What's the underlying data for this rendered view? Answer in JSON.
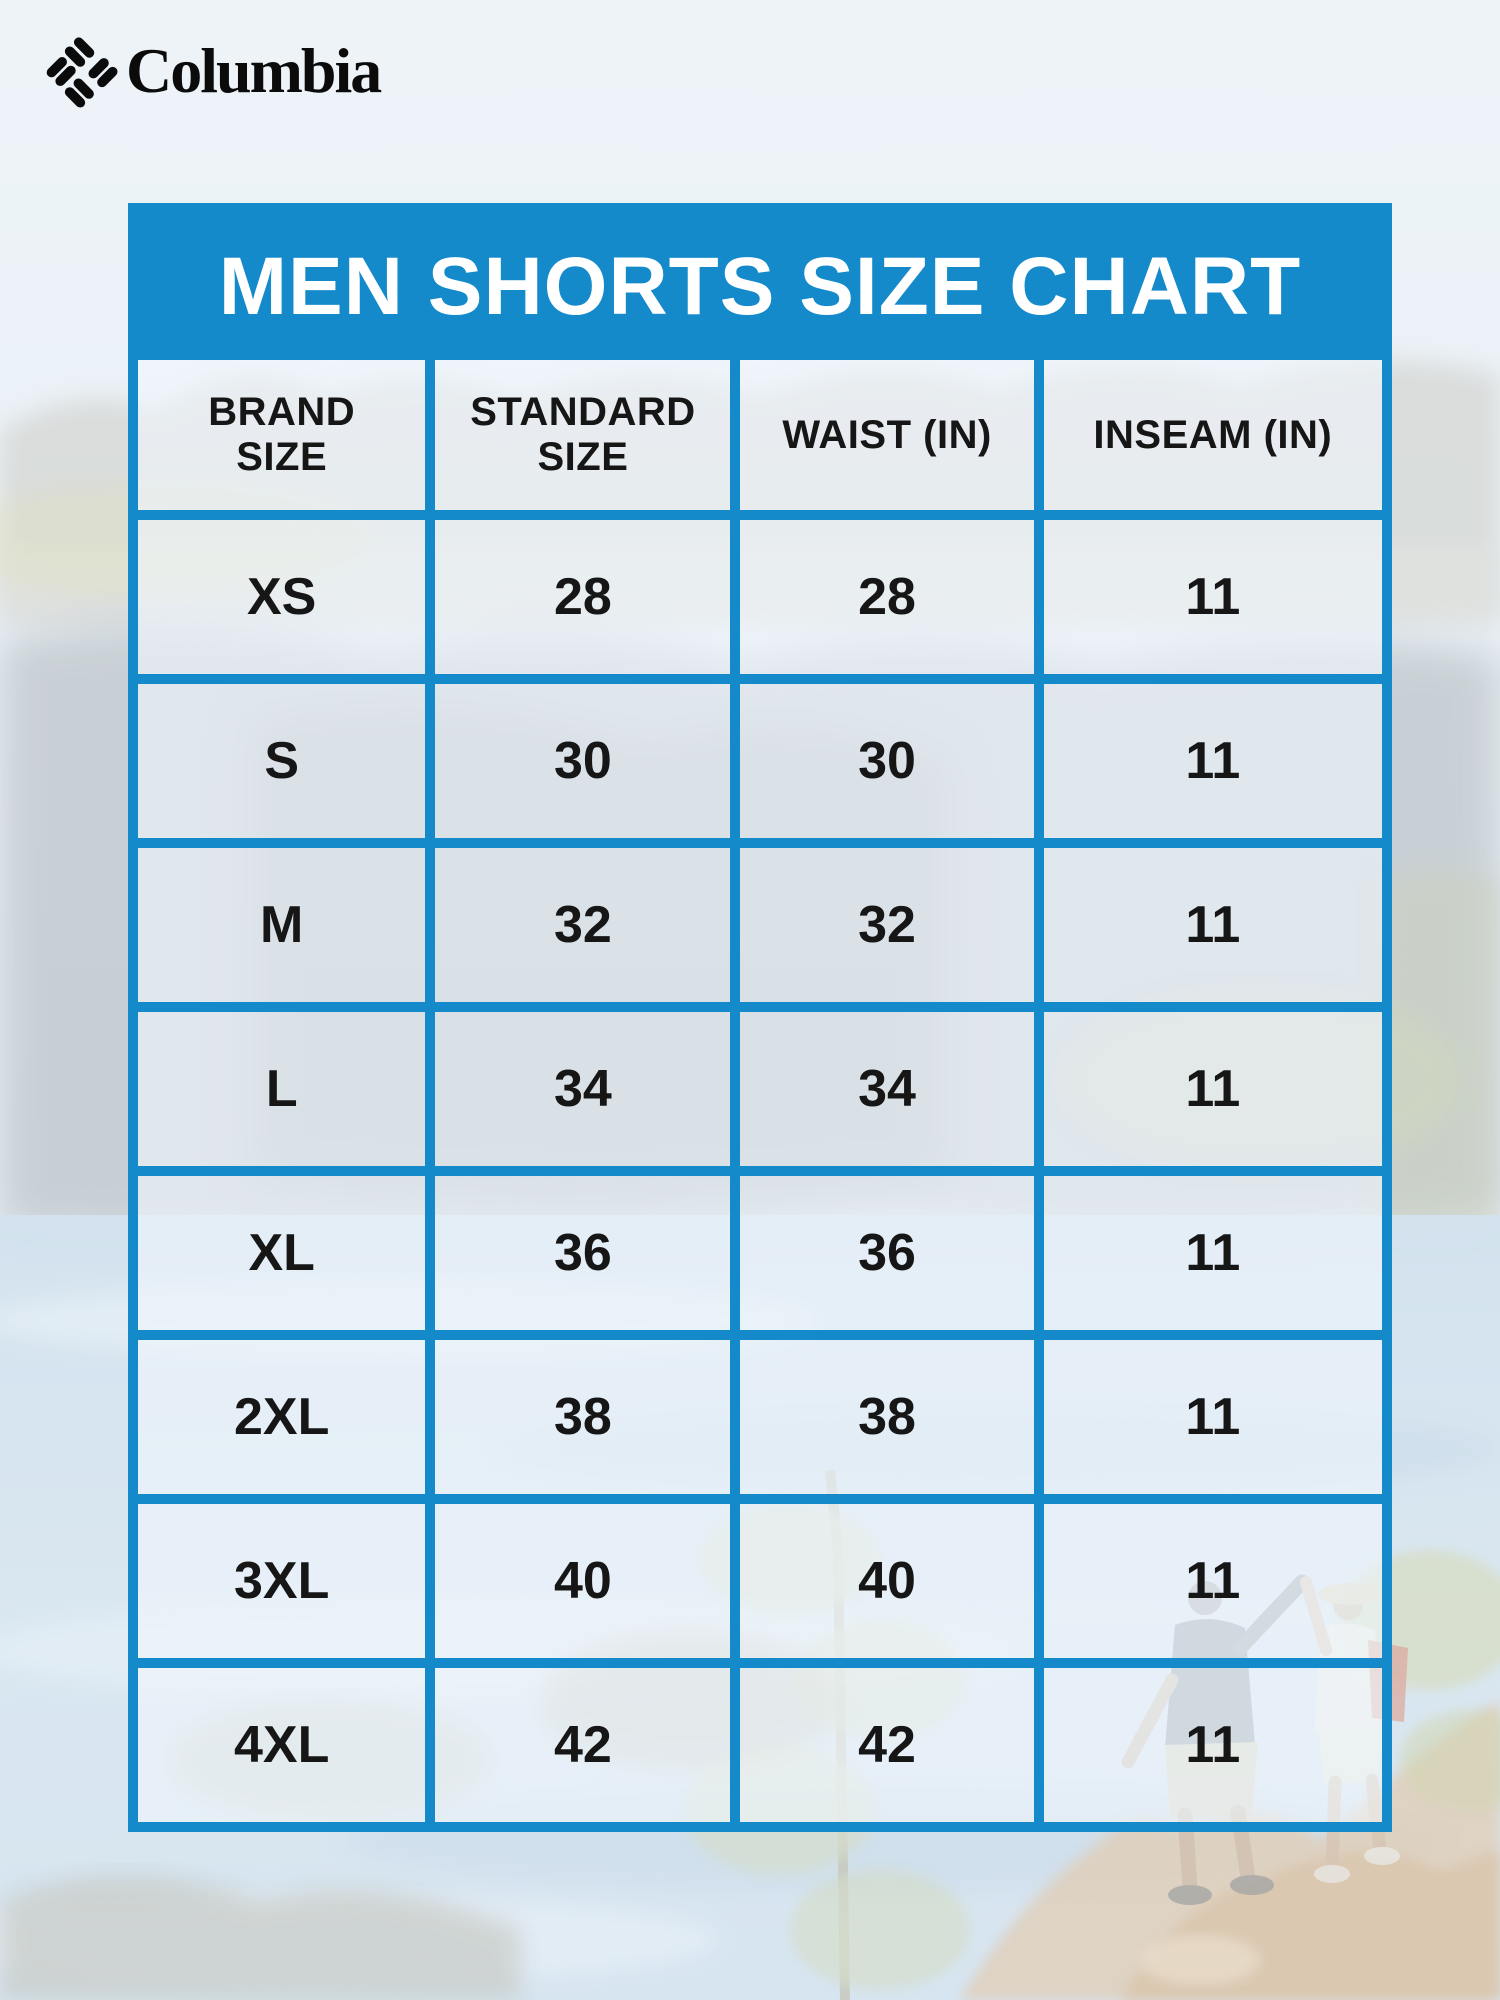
{
  "brand": {
    "wordmark": "Columbia",
    "icon": "columbia-gem-icon"
  },
  "chart_data": {
    "type": "table",
    "title": "MEN SHORTS SIZE CHART",
    "columns": [
      "BRAND SIZE",
      "STANDARD SIZE",
      "WAIST (IN)",
      "INSEAM (IN)"
    ],
    "rows": [
      [
        "XS",
        "28",
        "28",
        "11"
      ],
      [
        "S",
        "30",
        "30",
        "11"
      ],
      [
        "M",
        "32",
        "32",
        "11"
      ],
      [
        "L",
        "34",
        "34",
        "11"
      ],
      [
        "XL",
        "36",
        "36",
        "11"
      ],
      [
        "2XL",
        "38",
        "38",
        "11"
      ],
      [
        "3XL",
        "40",
        "40",
        "11"
      ],
      [
        "4XL",
        "42",
        "42",
        "11"
      ]
    ],
    "layout_hints": {
      "header_band": "solid blue",
      "grid": "on",
      "background": "faded outdoor photo (river, trees, cliffs, rocks, two hikers)"
    }
  },
  "colors": {
    "accent_blue": "#148aca",
    "title_text": "#ffffff",
    "cell_text": "#161616",
    "page_background": "#e7eef5",
    "logo_black": "#0b0b0b"
  }
}
